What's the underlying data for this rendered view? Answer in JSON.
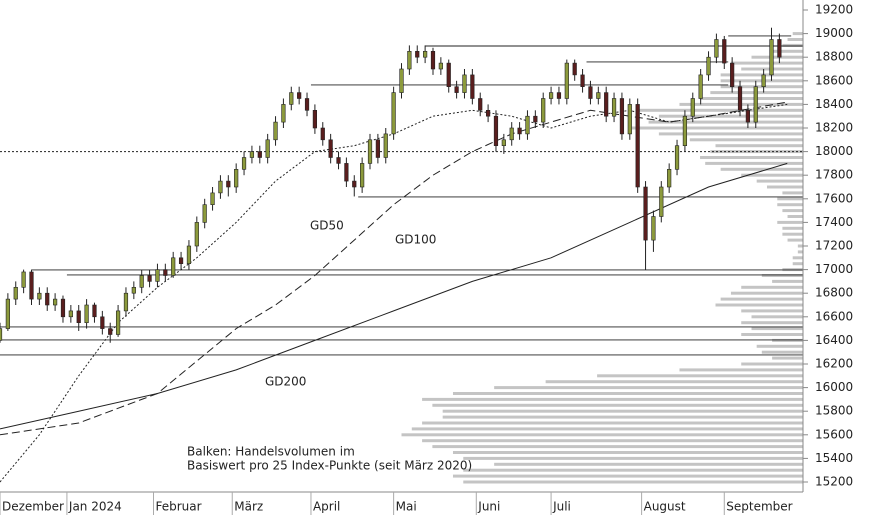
{
  "chart_data": {
    "type": "candlestick",
    "xlim": [
      0,
      204
    ],
    "ylim": [
      15100,
      19250
    ],
    "yticks": [
      15200,
      15400,
      15600,
      15800,
      16000,
      16200,
      16400,
      16600,
      16800,
      17000,
      17200,
      17400,
      17600,
      17800,
      18000,
      18200,
      18400,
      18600,
      18800,
      19000,
      19200
    ],
    "months": [
      "Dezember",
      "Jan 2024",
      "Februar",
      "März",
      "April",
      "Mai",
      "Juni",
      "Juli",
      "August",
      "September"
    ],
    "month_starts": [
      0,
      17,
      39,
      59,
      79,
      100,
      121,
      140,
      163,
      184
    ],
    "up_color": "#8c9a3c",
    "down_color": "#5a1e1e",
    "candles": [
      [
        0,
        16400,
        16550,
        16380,
        16500
      ],
      [
        2,
        16500,
        16800,
        16480,
        16750
      ],
      [
        4,
        16750,
        16900,
        16700,
        16850
      ],
      [
        6,
        16850,
        17000,
        16800,
        16980
      ],
      [
        8,
        16980,
        17000,
        16700,
        16750
      ],
      [
        10,
        16750,
        16850,
        16700,
        16800
      ],
      [
        12,
        16800,
        16850,
        16650,
        16700
      ],
      [
        14,
        16700,
        16800,
        16650,
        16750
      ],
      [
        16,
        16750,
        16780,
        16550,
        16600
      ],
      [
        18,
        16600,
        16700,
        16550,
        16650
      ],
      [
        20,
        16650,
        16700,
        16480,
        16550
      ],
      [
        22,
        16550,
        16750,
        16500,
        16700
      ],
      [
        24,
        16700,
        16720,
        16550,
        16600
      ],
      [
        26,
        16600,
        16650,
        16450,
        16500
      ],
      [
        28,
        16500,
        16550,
        16380,
        16450
      ],
      [
        30,
        16450,
        16700,
        16430,
        16650
      ],
      [
        32,
        16650,
        16850,
        16600,
        16800
      ],
      [
        34,
        16800,
        16900,
        16750,
        16850
      ],
      [
        36,
        16850,
        17000,
        16800,
        16950
      ],
      [
        38,
        16950,
        17000,
        16850,
        16900
      ],
      [
        40,
        16900,
        17050,
        16850,
        17000
      ],
      [
        42,
        17000,
        17050,
        16900,
        16950
      ],
      [
        44,
        16950,
        17150,
        16930,
        17100
      ],
      [
        46,
        17100,
        17150,
        17000,
        17050
      ],
      [
        48,
        17050,
        17250,
        17000,
        17200
      ],
      [
        50,
        17200,
        17450,
        17150,
        17400
      ],
      [
        52,
        17400,
        17600,
        17350,
        17550
      ],
      [
        54,
        17550,
        17700,
        17500,
        17650
      ],
      [
        56,
        17650,
        17800,
        17600,
        17750
      ],
      [
        58,
        17750,
        17800,
        17620,
        17700
      ],
      [
        60,
        17700,
        17900,
        17650,
        17850
      ],
      [
        62,
        17850,
        18000,
        17800,
        17950
      ],
      [
        64,
        17950,
        18050,
        17900,
        18000
      ],
      [
        66,
        18000,
        18050,
        17900,
        17950
      ],
      [
        68,
        17950,
        18150,
        17900,
        18100
      ],
      [
        70,
        18100,
        18300,
        18050,
        18250
      ],
      [
        72,
        18250,
        18450,
        18200,
        18400
      ],
      [
        74,
        18400,
        18550,
        18350,
        18500
      ],
      [
        76,
        18500,
        18550,
        18400,
        18450
      ],
      [
        78,
        18450,
        18500,
        18300,
        18350
      ],
      [
        80,
        18350,
        18400,
        18150,
        18200
      ],
      [
        82,
        18200,
        18250,
        18050,
        18100
      ],
      [
        84,
        18100,
        18150,
        17900,
        17950
      ],
      [
        86,
        17950,
        18000,
        17850,
        17900
      ],
      [
        88,
        17900,
        17950,
        17700,
        17750
      ],
      [
        90,
        17750,
        17800,
        17620,
        17700
      ],
      [
        92,
        17700,
        17950,
        17650,
        17900
      ],
      [
        94,
        17900,
        18150,
        17850,
        18100
      ],
      [
        96,
        18100,
        18150,
        17900,
        17950
      ],
      [
        98,
        17950,
        18200,
        17900,
        18150
      ],
      [
        100,
        18150,
        18550,
        18100,
        18500
      ],
      [
        102,
        18500,
        18750,
        18450,
        18700
      ],
      [
        104,
        18700,
        18900,
        18650,
        18850
      ],
      [
        106,
        18850,
        18900,
        18750,
        18800
      ],
      [
        108,
        18800,
        18900,
        18750,
        18850
      ],
      [
        110,
        18850,
        18880,
        18650,
        18700
      ],
      [
        112,
        18700,
        18800,
        18650,
        18750
      ],
      [
        114,
        18750,
        18780,
        18500,
        18550
      ],
      [
        116,
        18550,
        18600,
        18450,
        18500
      ],
      [
        118,
        18500,
        18700,
        18450,
        18650
      ],
      [
        120,
        18650,
        18700,
        18400,
        18450
      ],
      [
        122,
        18450,
        18500,
        18300,
        18350
      ],
      [
        124,
        18350,
        18400,
        18250,
        18300
      ],
      [
        126,
        18300,
        18350,
        18000,
        18050
      ],
      [
        128,
        18050,
        18150,
        17980,
        18100
      ],
      [
        130,
        18100,
        18250,
        18050,
        18200
      ],
      [
        132,
        18200,
        18250,
        18100,
        18150
      ],
      [
        134,
        18150,
        18350,
        18100,
        18300
      ],
      [
        136,
        18300,
        18350,
        18200,
        18250
      ],
      [
        138,
        18250,
        18500,
        18200,
        18450
      ],
      [
        140,
        18450,
        18550,
        18400,
        18500
      ],
      [
        142,
        18500,
        18550,
        18400,
        18450
      ],
      [
        144,
        18450,
        18780,
        18400,
        18750
      ],
      [
        146,
        18750,
        18780,
        18600,
        18650
      ],
      [
        148,
        18650,
        18700,
        18500,
        18550
      ],
      [
        150,
        18550,
        18600,
        18400,
        18450
      ],
      [
        152,
        18450,
        18550,
        18400,
        18500
      ],
      [
        154,
        18500,
        18550,
        18250,
        18300
      ],
      [
        156,
        18300,
        18500,
        18250,
        18450
      ],
      [
        158,
        18450,
        18500,
        18100,
        18150
      ],
      [
        160,
        18150,
        18450,
        18100,
        18400
      ],
      [
        162,
        18400,
        18450,
        17650,
        17700
      ],
      [
        164,
        17700,
        17750,
        17000,
        17250
      ],
      [
        166,
        17250,
        17500,
        17150,
        17450
      ],
      [
        168,
        17450,
        17750,
        17400,
        17700
      ],
      [
        170,
        17700,
        17900,
        17650,
        17850
      ],
      [
        172,
        17850,
        18100,
        17800,
        18050
      ],
      [
        174,
        18050,
        18350,
        18000,
        18300
      ],
      [
        176,
        18300,
        18500,
        18250,
        18450
      ],
      [
        178,
        18450,
        18700,
        18400,
        18650
      ],
      [
        180,
        18650,
        18850,
        18600,
        18800
      ],
      [
        182,
        18800,
        19000,
        18750,
        18950
      ],
      [
        184,
        18950,
        18980,
        18700,
        18750
      ],
      [
        186,
        18750,
        18800,
        18500,
        18550
      ],
      [
        188,
        18550,
        18600,
        18300,
        18350
      ],
      [
        190,
        18350,
        18400,
        18200,
        18250
      ],
      [
        192,
        18250,
        18600,
        18200,
        18550
      ],
      [
        194,
        18550,
        18700,
        18500,
        18650
      ],
      [
        196,
        18650,
        19050,
        18600,
        18950
      ],
      [
        198,
        18950,
        19000,
        18750,
        18800
      ]
    ],
    "series": [
      {
        "name": "GD50",
        "style": "dotted",
        "color": "#222222",
        "x": [
          0,
          10,
          20,
          30,
          40,
          50,
          60,
          70,
          80,
          90,
          100,
          110,
          120,
          130,
          140,
          150,
          160,
          170,
          180,
          200
        ],
        "values": [
          15200,
          15600,
          16100,
          16550,
          16850,
          17100,
          17400,
          17750,
          18000,
          18050,
          18150,
          18300,
          18350,
          18300,
          18200,
          18300,
          18350,
          18250,
          18300,
          18400
        ]
      },
      {
        "name": "GD100",
        "style": "dashed",
        "color": "#222222",
        "x": [
          0,
          20,
          40,
          60,
          70,
          80,
          90,
          100,
          110,
          120,
          130,
          140,
          150,
          160,
          170,
          180,
          200
        ],
        "values": [
          15600,
          15700,
          15950,
          16500,
          16700,
          16950,
          17250,
          17550,
          17800,
          18000,
          18150,
          18250,
          18350,
          18300,
          18250,
          18300,
          18420
        ]
      },
      {
        "name": "GD200",
        "style": "solid",
        "color": "#222222",
        "x": [
          0,
          20,
          40,
          60,
          80,
          100,
          120,
          140,
          160,
          180,
          200
        ],
        "values": [
          15650,
          15800,
          15950,
          16150,
          16400,
          16650,
          16900,
          17100,
          17400,
          17700,
          17900
        ]
      }
    ],
    "lines": [
      [
        108,
        18895,
        204
      ],
      [
        185,
        18980,
        201
      ],
      [
        149,
        18760,
        185
      ],
      [
        79,
        18565,
        185
      ],
      [
        91,
        17616,
        204
      ],
      [
        8,
        16997,
        204
      ],
      [
        17,
        16955,
        204
      ],
      [
        0,
        16514,
        204
      ],
      [
        0,
        16404,
        204
      ],
      [
        0,
        16277,
        204
      ]
    ],
    "reference_line": 18000,
    "profile": {
      "color": "#c4c4c4",
      "levels": [
        15200,
        15250,
        15300,
        15350,
        15400,
        15450,
        15500,
        15550,
        15600,
        15650,
        15700,
        15750,
        15800,
        15850,
        15900,
        15950,
        16000,
        16050,
        16100,
        16150,
        16200,
        16250,
        16300,
        16350,
        16400,
        16450,
        16500,
        16550,
        16600,
        16650,
        16700,
        16750,
        16800,
        16850,
        16900,
        16950,
        17000,
        17050,
        17100,
        17150,
        17200,
        17250,
        17300,
        17350,
        17400,
        17450,
        17500,
        17550,
        17600,
        17650,
        17700,
        17750,
        17800,
        17850,
        17900,
        17950,
        18000,
        18050,
        18100,
        18150,
        18200,
        18250,
        18300,
        18350,
        18400,
        18450,
        18500,
        18550,
        18600,
        18650,
        18700,
        18750,
        18800,
        18850,
        18900,
        18950,
        19000
      ],
      "values": [
        330,
        340,
        330,
        300,
        330,
        340,
        360,
        370,
        390,
        380,
        370,
        350,
        350,
        360,
        370,
        340,
        300,
        250,
        200,
        120,
        60,
        30,
        40,
        45,
        30,
        60,
        50,
        60,
        50,
        60,
        85,
        80,
        70,
        60,
        30,
        40,
        20,
        10,
        10,
        5,
        5,
        15,
        20,
        20,
        25,
        15,
        20,
        25,
        25,
        20,
        35,
        45,
        60,
        80,
        95,
        100,
        90,
        85,
        110,
        140,
        170,
        150,
        140,
        160,
        120,
        100,
        90,
        80,
        80,
        80,
        60,
        70,
        50,
        30,
        20,
        15,
        10
      ]
    },
    "note": [
      "Balken: Handelsvolumen im",
      "Basiswert pro 25 Index-Punkte (seit März 2020)"
    ]
  }
}
